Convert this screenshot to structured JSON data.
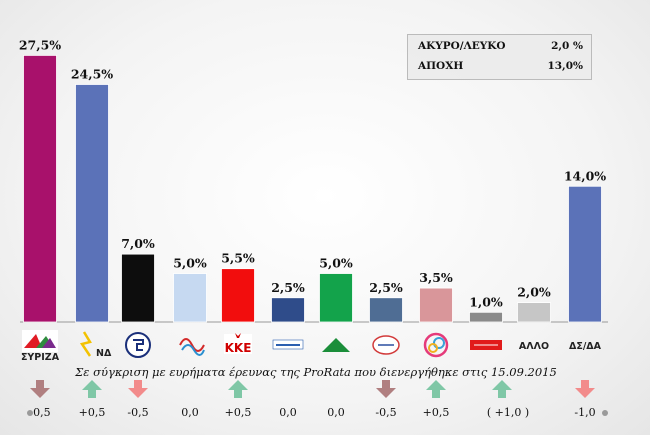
{
  "chart_data": {
    "type": "bar",
    "categories": [
      "ΣΥΡΙΖΑ",
      "ΝΔ",
      "",
      "",
      "ΚΚΕ",
      "",
      "",
      "",
      "",
      "",
      "ΑΛΛΟ",
      "ΔΣ/ΔΑ"
    ],
    "values": [
      27.5,
      24.5,
      7.0,
      5.0,
      5.5,
      2.5,
      5.0,
      2.5,
      3.5,
      1.0,
      2.0,
      14.0
    ],
    "value_labels": [
      "27,5%",
      "24,5%",
      "7,0%",
      "5,0%",
      "5,5%",
      "2,5%",
      "5,0%",
      "2,5%",
      "3,5%",
      "1,0%",
      "2,0%",
      "14,0%"
    ],
    "colors": [
      "#a8116b",
      "#5b72b8",
      "#0d0d0d",
      "#c6d9f1",
      "#f20d0d",
      "#2f4c8a",
      "#13a34b",
      "#4f6d94",
      "#d9969a",
      "#8a8a8a",
      "#c6c6c6",
      "#5b72b8"
    ],
    "category_icons": [
      "syriza-logo",
      "nd-logo",
      "golden-dawn-logo",
      "potami-logo",
      "kke-logo",
      "anel-logo",
      "pasok-logo",
      "enosi-kentroon-logo",
      "laiki-enotita-logo",
      "antarsya-logo",
      "",
      ""
    ],
    "ylim": [
      0,
      30
    ],
    "note": "Σε σύγκριση με ευρήματα έρευνας της ProRata που διενεργήθηκε στις 15.09.2015",
    "changes": [
      "-0,5",
      "+0,5",
      "-0,5",
      "0,0",
      "+0,5",
      "0,0",
      "0,0",
      "-0,5",
      "+0,5",
      "( +1,0 )",
      "",
      "-1,0"
    ],
    "change_arrows": [
      "down",
      "up",
      "down",
      "",
      "up",
      "",
      "",
      "down",
      "up",
      "up",
      "",
      "down"
    ],
    "arrow_colors": {
      "up": "#7fc7a6",
      "down_dark": "#b07f80",
      "down_light": "#f28b8b"
    },
    "arrow_shades": [
      "down_dark",
      "up",
      "down_light",
      "",
      "up",
      "",
      "",
      "down_dark",
      "up",
      "up",
      "",
      "down_light"
    ]
  },
  "legend": {
    "rows": [
      {
        "label": "ΑΚΥΡΟ/ΛΕΥΚΟ",
        "value": "2,0 %"
      },
      {
        "label": "ΑΠΟΧΗ",
        "value": "13,0%"
      }
    ]
  }
}
